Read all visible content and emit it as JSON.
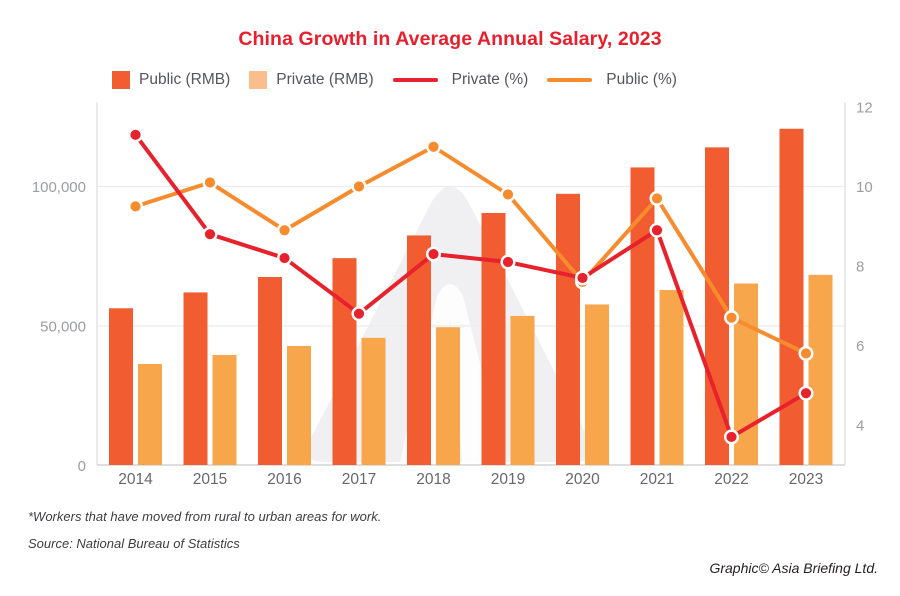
{
  "title": "China Growth in Average Annual Salary, 2023",
  "colors": {
    "title": "#e8202e",
    "public_bar": "#f15c30",
    "private_bar": "#f7a64c",
    "private_line": "#e8222d",
    "public_line": "#f68c2d",
    "legend_private_swatch": "#fabd8c",
    "grid": "#ececee",
    "axis_line": "#d2d3d5",
    "tick_text": "#9b9da0",
    "year_text": "#66686b",
    "watermark": "#f0f0f2"
  },
  "legend": {
    "items": [
      {
        "label": "Public (RMB)",
        "type": "square",
        "color": "#f15c30"
      },
      {
        "label": "Private (RMB)",
        "type": "square",
        "color": "#fabd8c"
      },
      {
        "label": "Private (%)",
        "type": "line",
        "color": "#e8222d"
      },
      {
        "label": "Public (%)",
        "type": "line",
        "color": "#f68c2d"
      }
    ]
  },
  "footnotes": {
    "note": "*Workers that have moved from rural to urban areas for work.",
    "source": "Source: National Bureau of Statistics"
  },
  "credit": "Graphic© Asia Briefing Ltd.",
  "chart_data": {
    "type": "combo",
    "subtype": "grouped bar (left axis) + line (right axis)",
    "title": "China Growth in Average Annual Salary, 2023",
    "categories": [
      "2014",
      "2015",
      "2016",
      "2017",
      "2018",
      "2019",
      "2020",
      "2021",
      "2022",
      "2023"
    ],
    "bar_series": [
      {
        "name": "Public (RMB)",
        "axis": "left",
        "color": "#f15c30",
        "values": [
          56360,
          62029,
          67569,
          74318,
          82461,
          90501,
          97379,
          106837,
          114029,
          120698
        ]
      },
      {
        "name": "Private (RMB)",
        "axis": "left",
        "color": "#f7a64c",
        "values": [
          36390,
          39589,
          42833,
          45761,
          49575,
          53604,
          57727,
          62884,
          65237,
          68340
        ]
      }
    ],
    "line_series": [
      {
        "name": "Public (%)",
        "axis": "right",
        "color": "#f68c2d",
        "marker_stroke": "#ffffff",
        "values": [
          9.5,
          10.1,
          8.9,
          10.0,
          11.0,
          9.8,
          7.6,
          9.7,
          6.7,
          5.8
        ]
      },
      {
        "name": "Private (%)",
        "axis": "right",
        "color": "#e8222d",
        "marker_stroke": "#ffffff",
        "values": [
          11.3,
          8.8,
          8.2,
          6.8,
          8.3,
          8.1,
          7.7,
          8.9,
          3.7,
          4.8
        ]
      }
    ],
    "left_axis": {
      "min": 0,
      "max": 131000,
      "ticks": [
        {
          "value": 0,
          "label": "0"
        },
        {
          "value": 50000,
          "label": "50,000"
        },
        {
          "value": 100000,
          "label": "100,000"
        }
      ]
    },
    "right_axis": {
      "min": 4,
      "max": 12,
      "ticks": [
        {
          "value": 4,
          "label": "4"
        },
        {
          "value": 6,
          "label": "6"
        },
        {
          "value": 8,
          "label": "8"
        },
        {
          "value": 10,
          "label": "10"
        },
        {
          "value": 12,
          "label": "12"
        }
      ]
    },
    "grid": {
      "horizontal_at_left_ticks": true,
      "vertical": false
    },
    "legend_position": "top"
  }
}
